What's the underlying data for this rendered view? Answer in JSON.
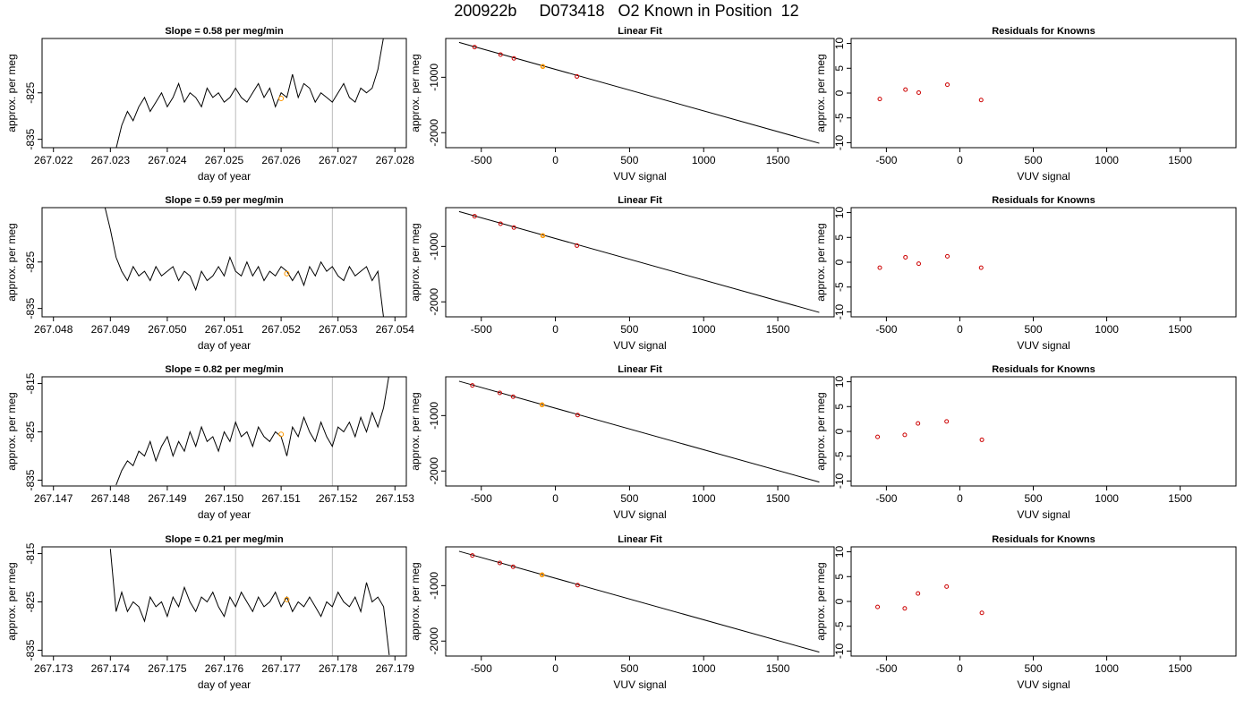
{
  "title": "200922b     D073418   O2 Known in Position  12",
  "chart_data": [
    {
      "type": "line",
      "title": "Slope =  0.58  per meg/min",
      "xlabel": "day of year",
      "ylabel": "approx. per meg",
      "xlim": [
        267.0218,
        267.0282
      ],
      "ylim": [
        -836.8,
        -813.3
      ],
      "xticks": [
        "267.022",
        "267.023",
        "267.024",
        "267.025",
        "267.026",
        "267.027",
        "267.028"
      ],
      "xtick_values": [
        267.022,
        267.023,
        267.024,
        267.025,
        267.026,
        267.027,
        267.028
      ],
      "yticks": [
        "-825",
        "-835"
      ],
      "ytick_values": [
        -825,
        -835
      ],
      "vlines": [
        267.0252,
        267.0269
      ],
      "highlight_point": {
        "x": 267.026,
        "y": -826.2
      },
      "x": [
        267.0231,
        267.0232,
        267.0233,
        267.0234,
        267.0235,
        267.0236,
        267.0237,
        267.0238,
        267.0239,
        267.024,
        267.0241,
        267.0242,
        267.0243,
        267.0244,
        267.0245,
        267.0246,
        267.0247,
        267.0248,
        267.0249,
        267.025,
        267.0251,
        267.0252,
        267.0253,
        267.0254,
        267.0255,
        267.0256,
        267.0257,
        267.0258,
        267.0259,
        267.026,
        267.0261,
        267.0262,
        267.0263,
        267.0264,
        267.0265,
        267.0266,
        267.0267,
        267.0268,
        267.0269,
        267.027,
        267.0271,
        267.0272,
        267.0273,
        267.0274,
        267.0275,
        267.0276,
        267.0277,
        267.0278
      ],
      "y": [
        -837,
        -832,
        -829,
        -831,
        -828,
        -826,
        -829,
        -827,
        -825,
        -828,
        -826,
        -823,
        -827,
        -825,
        -826,
        -828,
        -824,
        -826,
        -825,
        -827,
        -826,
        -824,
        -826,
        -827,
        -825,
        -823,
        -826,
        -824,
        -828,
        -825,
        -826,
        -821,
        -826,
        -823,
        -824,
        -827,
        -825,
        -826,
        -827,
        -825,
        -823,
        -826,
        -827,
        -824,
        -825,
        -824,
        -820,
        -813
      ]
    },
    {
      "type": "line",
      "title": "Linear Fit",
      "xlabel": "VUV signal",
      "ylabel": "approx. per meg",
      "xlim": [
        -740,
        1880
      ],
      "ylim": [
        -2270,
        -300
      ],
      "xticks": [
        "-500",
        "0",
        "500",
        "1000",
        "1500"
      ],
      "xtick_values": [
        -500,
        0,
        500,
        1000,
        1500
      ],
      "yticks": [
        "-1000",
        "-2000"
      ],
      "ytick_values": [
        -1000,
        -2000
      ],
      "line": {
        "x": [
          -650,
          1780
        ],
        "y": [
          -370,
          -2190
        ]
      },
      "points": {
        "x": [
          -545,
          -370,
          -280,
          -85,
          145
        ],
        "y": [
          -455,
          -590,
          -660,
          -805,
          -985
        ]
      },
      "highlight_point": {
        "x": -85,
        "y": -805
      }
    },
    {
      "type": "scatter",
      "title": "Residuals for Knowns",
      "xlabel": "VUV signal",
      "ylabel": "approx. per meg",
      "xlim": [
        -740,
        1880
      ],
      "ylim": [
        -11,
        11
      ],
      "xticks": [
        "-500",
        "0",
        "500",
        "1000",
        "1500"
      ],
      "xtick_values": [
        -500,
        0,
        500,
        1000,
        1500
      ],
      "yticks": [
        "10",
        "5",
        "0",
        "-5",
        "-10"
      ],
      "ytick_values": [
        10,
        5,
        0,
        -5,
        -10
      ],
      "x": [
        -545,
        -370,
        -280,
        -85,
        145
      ],
      "y": [
        -1.2,
        0.7,
        0.1,
        1.7,
        -1.4
      ]
    },
    {
      "type": "line",
      "title": "Slope =  0.59  per meg/min",
      "xlabel": "day of year",
      "ylabel": "approx. per meg",
      "xlim": [
        267.0478,
        267.0542
      ],
      "ylim": [
        -836.8,
        -813.3
      ],
      "xticks": [
        "267.048",
        "267.049",
        "267.050",
        "267.051",
        "267.052",
        "267.053",
        "267.054"
      ],
      "xtick_values": [
        267.048,
        267.049,
        267.05,
        267.051,
        267.052,
        267.053,
        267.054
      ],
      "yticks": [
        "-825",
        "-835"
      ],
      "ytick_values": [
        -825,
        -835
      ],
      "vlines": [
        267.0512,
        267.0529
      ],
      "highlight_point": {
        "x": 267.0521,
        "y": -827.5
      },
      "x": [
        267.0489,
        267.049,
        267.0491,
        267.0492,
        267.0493,
        267.0494,
        267.0495,
        267.0496,
        267.0497,
        267.0498,
        267.0499,
        267.05,
        267.0501,
        267.0502,
        267.0503,
        267.0504,
        267.0505,
        267.0506,
        267.0507,
        267.0508,
        267.0509,
        267.051,
        267.0511,
        267.0512,
        267.0513,
        267.0514,
        267.0515,
        267.0516,
        267.0517,
        267.0518,
        267.0519,
        267.052,
        267.0521,
        267.0522,
        267.0523,
        267.0524,
        267.0525,
        267.0526,
        267.0527,
        267.0528,
        267.0529,
        267.053,
        267.0531,
        267.0532,
        267.0533,
        267.0534,
        267.0535,
        267.0536,
        267.0537,
        267.0538
      ],
      "y": [
        -813,
        -818,
        -824,
        -827,
        -829,
        -826,
        -828,
        -827,
        -829,
        -826,
        -828,
        -827,
        -826,
        -829,
        -827,
        -828,
        -831,
        -827,
        -829,
        -828,
        -826,
        -828,
        -824,
        -827,
        -828,
        -825,
        -828,
        -826,
        -829,
        -827,
        -828,
        -826,
        -827,
        -829,
        -827,
        -830,
        -826,
        -828,
        -825,
        -827,
        -826,
        -828,
        -829,
        -826,
        -828,
        -827,
        -826,
        -829,
        -827,
        -837
      ]
    },
    {
      "type": "line",
      "title": "Linear Fit",
      "xlabel": "VUV signal",
      "ylabel": "approx. per meg",
      "xlim": [
        -740,
        1880
      ],
      "ylim": [
        -2270,
        -300
      ],
      "xticks": [
        "-500",
        "0",
        "500",
        "1000",
        "1500"
      ],
      "xtick_values": [
        -500,
        0,
        500,
        1000,
        1500
      ],
      "yticks": [
        "-1000",
        "-2000"
      ],
      "ytick_values": [
        -1000,
        -2000
      ],
      "line": {
        "x": [
          -650,
          1780
        ],
        "y": [
          -370,
          -2190
        ]
      },
      "points": {
        "x": [
          -545,
          -370,
          -280,
          -85,
          145
        ],
        "y": [
          -455,
          -590,
          -660,
          -805,
          -985
        ]
      },
      "highlight_point": {
        "x": -85,
        "y": -805
      }
    },
    {
      "type": "scatter",
      "title": "Residuals for Knowns",
      "xlabel": "VUV signal",
      "ylabel": "approx. per meg",
      "xlim": [
        -740,
        1880
      ],
      "ylim": [
        -11,
        11
      ],
      "xticks": [
        "-500",
        "0",
        "500",
        "1000",
        "1500"
      ],
      "xtick_values": [
        -500,
        0,
        500,
        1000,
        1500
      ],
      "yticks": [
        "10",
        "5",
        "0",
        "-5",
        "-10"
      ],
      "ytick_values": [
        10,
        5,
        0,
        -5,
        -10
      ],
      "x": [
        -545,
        -370,
        -280,
        -85,
        145
      ],
      "y": [
        -1.1,
        1.0,
        -0.3,
        1.2,
        -1.1
      ]
    },
    {
      "type": "line",
      "title": "Slope =  0.82  per meg/min",
      "xlabel": "day of year",
      "ylabel": "approx. per meg",
      "xlim": [
        267.1468,
        267.1532
      ],
      "ylim": [
        -836.2,
        -813.6
      ],
      "xticks": [
        "267.147",
        "267.148",
        "267.149",
        "267.150",
        "267.151",
        "267.152",
        "267.153"
      ],
      "xtick_values": [
        267.147,
        267.148,
        267.149,
        267.15,
        267.151,
        267.152,
        267.153
      ],
      "yticks": [
        "-815",
        "-825",
        "-835"
      ],
      "ytick_values": [
        -815,
        -825,
        -835
      ],
      "vlines": [
        267.1502,
        267.1519
      ],
      "highlight_point": {
        "x": 267.151,
        "y": -825.5
      },
      "x": [
        267.1481,
        267.1482,
        267.1483,
        267.1484,
        267.1485,
        267.1486,
        267.1487,
        267.1488,
        267.1489,
        267.149,
        267.1491,
        267.1492,
        267.1493,
        267.1494,
        267.1495,
        267.1496,
        267.1497,
        267.1498,
        267.1499,
        267.15,
        267.1501,
        267.1502,
        267.1503,
        267.1504,
        267.1505,
        267.1506,
        267.1507,
        267.1508,
        267.1509,
        267.151,
        267.1511,
        267.1512,
        267.1513,
        267.1514,
        267.1515,
        267.1516,
        267.1517,
        267.1518,
        267.1519,
        267.152,
        267.1521,
        267.1522,
        267.1523,
        267.1524,
        267.1525,
        267.1526,
        267.1527,
        267.1528,
        267.1529
      ],
      "y": [
        -836,
        -833,
        -831,
        -832,
        -829,
        -830,
        -827,
        -831,
        -828,
        -826,
        -830,
        -827,
        -829,
        -825,
        -828,
        -824,
        -827,
        -826,
        -829,
        -825,
        -827,
        -823,
        -826,
        -825,
        -828,
        -824,
        -826,
        -827,
        -825,
        -826,
        -830,
        -824,
        -826,
        -822,
        -825,
        -827,
        -823,
        -826,
        -828,
        -824,
        -825,
        -823,
        -826,
        -822,
        -825,
        -821,
        -824,
        -820,
        -813
      ]
    },
    {
      "type": "line",
      "title": "Linear Fit",
      "xlabel": "VUV signal",
      "ylabel": "approx. per meg",
      "xlim": [
        -740,
        1880
      ],
      "ylim": [
        -2270,
        -300
      ],
      "xticks": [
        "-500",
        "0",
        "500",
        "1000",
        "1500"
      ],
      "xtick_values": [
        -500,
        0,
        500,
        1000,
        1500
      ],
      "yticks": [
        "-1000",
        "-2000"
      ],
      "ytick_values": [
        -1000,
        -2000
      ],
      "line": {
        "x": [
          -650,
          1780
        ],
        "y": [
          -380,
          -2200
        ]
      },
      "points": {
        "x": [
          -560,
          -375,
          -285,
          -90,
          150
        ],
        "y": [
          -455,
          -590,
          -660,
          -805,
          -990
        ]
      },
      "highlight_point": {
        "x": -90,
        "y": -805
      }
    },
    {
      "type": "scatter",
      "title": "Residuals for Knowns",
      "xlabel": "VUV signal",
      "ylabel": "approx. per meg",
      "xlim": [
        -740,
        1880
      ],
      "ylim": [
        -11,
        11
      ],
      "xticks": [
        "-500",
        "0",
        "500",
        "1000",
        "1500"
      ],
      "xtick_values": [
        -500,
        0,
        500,
        1000,
        1500
      ],
      "yticks": [
        "10",
        "5",
        "0",
        "-5",
        "-10"
      ],
      "ytick_values": [
        10,
        5,
        0,
        -5,
        -10
      ],
      "x": [
        -560,
        -375,
        -285,
        -90,
        150
      ],
      "y": [
        -1.1,
        -0.7,
        1.6,
        2.0,
        -1.7
      ]
    },
    {
      "type": "line",
      "title": "Slope =  0.21  per meg/min",
      "xlabel": "day of year",
      "ylabel": "approx. per meg",
      "xlim": [
        267.1728,
        267.1792
      ],
      "ylim": [
        -836.2,
        -813.6
      ],
      "xticks": [
        "267.173",
        "267.174",
        "267.175",
        "267.176",
        "267.177",
        "267.178",
        "267.179"
      ],
      "xtick_values": [
        267.173,
        267.174,
        267.175,
        267.176,
        267.177,
        267.178,
        267.179
      ],
      "yticks": [
        "-815",
        "-825",
        "-835"
      ],
      "ytick_values": [
        -815,
        -825,
        -835
      ],
      "vlines": [
        267.1762,
        267.1779
      ],
      "highlight_point": {
        "x": 267.1771,
        "y": -824.5
      },
      "x": [
        267.174,
        267.1741,
        267.1742,
        267.1743,
        267.1744,
        267.1745,
        267.1746,
        267.1747,
        267.1748,
        267.1749,
        267.175,
        267.1751,
        267.1752,
        267.1753,
        267.1754,
        267.1755,
        267.1756,
        267.1757,
        267.1758,
        267.1759,
        267.176,
        267.1761,
        267.1762,
        267.1763,
        267.1764,
        267.1765,
        267.1766,
        267.1767,
        267.1768,
        267.1769,
        267.177,
        267.1771,
        267.1772,
        267.1773,
        267.1774,
        267.1775,
        267.1776,
        267.1777,
        267.1778,
        267.1779,
        267.178,
        267.1781,
        267.1782,
        267.1783,
        267.1784,
        267.1785,
        267.1786,
        267.1787,
        267.1788,
        267.1789
      ],
      "y": [
        -814,
        -827,
        -823,
        -827,
        -825,
        -826,
        -829,
        -824,
        -826,
        -825,
        -828,
        -824,
        -826,
        -822,
        -825,
        -827,
        -824,
        -825,
        -823,
        -826,
        -828,
        -824,
        -826,
        -823,
        -825,
        -827,
        -824,
        -826,
        -825,
        -823,
        -826,
        -824,
        -827,
        -825,
        -826,
        -824,
        -826,
        -828,
        -825,
        -826,
        -823,
        -825,
        -826,
        -824,
        -827,
        -821,
        -825,
        -824,
        -826,
        -836
      ]
    },
    {
      "type": "line",
      "title": "Linear Fit",
      "xlabel": "VUV signal",
      "ylabel": "approx. per meg",
      "xlim": [
        -740,
        1880
      ],
      "ylim": [
        -2270,
        -300
      ],
      "xticks": [
        "-500",
        "0",
        "500",
        "1000",
        "1500"
      ],
      "xtick_values": [
        -500,
        0,
        500,
        1000,
        1500
      ],
      "yticks": [
        "-1000",
        "-2000"
      ],
      "ytick_values": [
        -1000,
        -2000
      ],
      "line": {
        "x": [
          -650,
          1780
        ],
        "y": [
          -380,
          -2200
        ]
      },
      "points": {
        "x": [
          -560,
          -375,
          -285,
          -90,
          150
        ],
        "y": [
          -455,
          -590,
          -660,
          -805,
          -990
        ]
      },
      "highlight_point": {
        "x": -90,
        "y": -805
      }
    },
    {
      "type": "scatter",
      "title": "Residuals for Knowns",
      "xlabel": "VUV signal",
      "ylabel": "approx. per meg",
      "xlim": [
        -740,
        1880
      ],
      "ylim": [
        -11,
        11
      ],
      "xticks": [
        "-500",
        "0",
        "500",
        "1000",
        "1500"
      ],
      "xtick_values": [
        -500,
        0,
        500,
        1000,
        1500
      ],
      "yticks": [
        "10",
        "5",
        "0",
        "-5",
        "-10"
      ],
      "ytick_values": [
        10,
        5,
        0,
        -5,
        -10
      ],
      "x": [
        -560,
        -375,
        -285,
        -90,
        150
      ],
      "y": [
        -1.1,
        -1.4,
        1.6,
        3.0,
        -2.3
      ]
    }
  ],
  "colors": {
    "line": "#000000",
    "residual_points": "#cc0000",
    "highlight": "#ff9900",
    "vline": "#bbbbbb"
  }
}
